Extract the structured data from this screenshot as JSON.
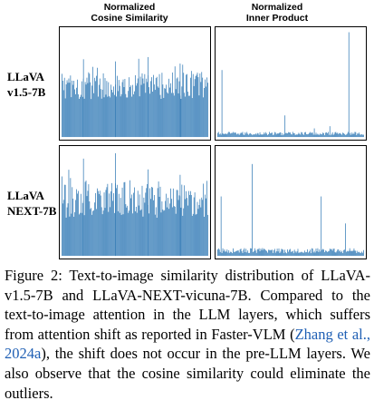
{
  "figure": {
    "col_headers": [
      "Normalized\nCosine Similarity",
      "Normalized\nInner Product"
    ],
    "row_labels": [
      "LLaVA\nv1.5-7B",
      "LLaVA\nNEXT-7B"
    ],
    "bar_color": "#2a75b3"
  },
  "chart_data": [
    {
      "type": "bar",
      "row": "LLaVA v1.5-7B",
      "column": "Normalized Cosine Similarity",
      "pattern": "dense",
      "n_bars": 170,
      "ylim": [
        0,
        1
      ],
      "typical_height": [
        0.35,
        0.6
      ],
      "peak_heights": [
        0.72,
        0.7,
        0.74,
        0.68
      ]
    },
    {
      "type": "bar",
      "row": "LLaVA v1.5-7B",
      "column": "Normalized Inner Product",
      "pattern": "sparse",
      "n_bars": 170,
      "ylim": [
        0,
        1
      ],
      "baseline_height": 0.04,
      "outliers": [
        {
          "index": 5,
          "value": 0.62
        },
        {
          "index": 78,
          "value": 0.2
        },
        {
          "index": 112,
          "value": 0.08
        },
        {
          "index": 130,
          "value": 0.1
        },
        {
          "index": 152,
          "value": 0.97
        }
      ]
    },
    {
      "type": "bar",
      "row": "LLaVA NEXT-7B",
      "column": "Normalized Cosine Similarity",
      "pattern": "dense",
      "n_bars": 170,
      "ylim": [
        0,
        1
      ],
      "typical_height": [
        0.35,
        0.7
      ],
      "peak_heights": [
        0.9,
        0.95,
        0.8,
        0.75
      ]
    },
    {
      "type": "bar",
      "row": "LLaVA NEXT-7B",
      "column": "Normalized Inner Product",
      "pattern": "sparse",
      "n_bars": 170,
      "ylim": [
        0,
        1
      ],
      "baseline_height": 0.06,
      "outliers": [
        {
          "index": 40,
          "value": 0.85
        },
        {
          "index": 4,
          "value": 0.55
        },
        {
          "index": 120,
          "value": 0.55
        },
        {
          "index": 148,
          "value": 0.3
        }
      ]
    }
  ],
  "caption": {
    "before_cite": "Figure 2: Text-to-image similarity distribution of LLaVA-v1.5-7B and LLaVA-NEXT-vicuna-7B. Compared to the text-to-image attention in the LLM layers, which suffers from attention shift as reported in Faster-VLM (",
    "cite": "Zhang et al., 2024a",
    "after_cite": "), the shift does not occur in the pre-LLM layers. We also observe that the cosine similarity could eliminate the outliers."
  }
}
